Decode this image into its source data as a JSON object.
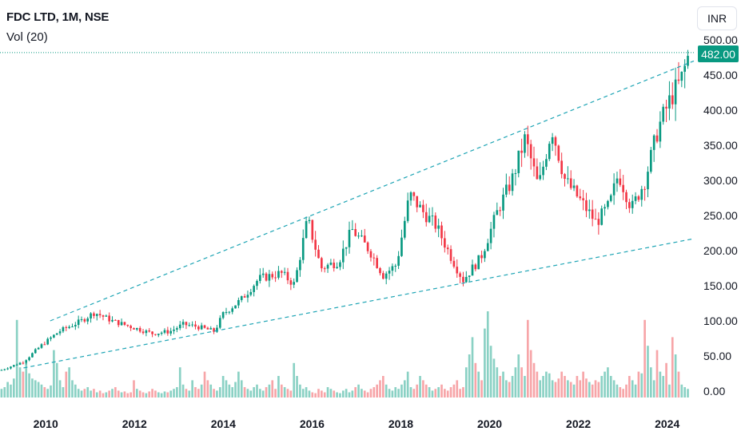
{
  "header": {
    "symbol_line": "FDC LTD, 1M, NSE",
    "volume_label": "Vol (20)",
    "currency": "INR",
    "last_price": "482.00"
  },
  "colors": {
    "up": "#089981",
    "down": "#f23645",
    "vol_up": "#8ad1c4",
    "vol_down": "#f7a5a8",
    "trendline": "#1fa5b5"
  },
  "chart_data": {
    "type": "candlestick",
    "title": "FDC LTD, 1M, NSE",
    "y_ticks": [
      "0.00",
      "50.00",
      "100.00",
      "150.00",
      "200.00",
      "250.00",
      "300.00",
      "350.00",
      "400.00",
      "450.00",
      "500.00"
    ],
    "x_ticks": [
      "2010",
      "2012",
      "2014",
      "2016",
      "2018",
      "2020",
      "2022",
      "2024"
    ],
    "ylim": [
      -10,
      510
    ],
    "xlim": [
      2008.97,
      2024.6
    ],
    "last_price": 482,
    "grid": false,
    "price_path": [
      [
        2009.0,
        30
      ],
      [
        2009.5,
        42
      ],
      [
        2009.9,
        65
      ],
      [
        2010.3,
        85
      ],
      [
        2010.8,
        100
      ],
      [
        2011.1,
        112
      ],
      [
        2011.5,
        100
      ],
      [
        2011.9,
        92
      ],
      [
        2012.4,
        82
      ],
      [
        2012.8,
        85
      ],
      [
        2013.1,
        95
      ],
      [
        2013.4,
        92
      ],
      [
        2013.8,
        85
      ],
      [
        2014.0,
        110
      ],
      [
        2014.4,
        130
      ],
      [
        2014.8,
        160
      ],
      [
        2015.3,
        168
      ],
      [
        2015.6,
        152
      ],
      [
        2015.9,
        245
      ],
      [
        2016.2,
        175
      ],
      [
        2016.6,
        185
      ],
      [
        2016.9,
        230
      ],
      [
        2017.3,
        200
      ],
      [
        2017.6,
        165
      ],
      [
        2017.9,
        180
      ],
      [
        2018.2,
        280
      ],
      [
        2018.5,
        255
      ],
      [
        2018.8,
        235
      ],
      [
        2019.1,
        195
      ],
      [
        2019.4,
        158
      ],
      [
        2019.8,
        190
      ],
      [
        2020.2,
        260
      ],
      [
        2020.5,
        300
      ],
      [
        2020.8,
        360
      ],
      [
        2021.1,
        290
      ],
      [
        2021.4,
        375
      ],
      [
        2021.7,
        300
      ],
      [
        2022.0,
        275
      ],
      [
        2022.4,
        240
      ],
      [
        2022.7,
        265
      ],
      [
        2022.9,
        310
      ],
      [
        2023.2,
        260
      ],
      [
        2023.5,
        300
      ],
      [
        2023.8,
        375
      ],
      [
        2024.1,
        420
      ],
      [
        2024.3,
        440
      ],
      [
        2024.5,
        482
      ]
    ],
    "trendlines": [
      {
        "x": [
          2010.1,
          2024.6
        ],
        "y": [
          100,
          470
        ]
      },
      {
        "x": [
          2009.5,
          2024.6
        ],
        "y": [
          33,
          217
        ]
      }
    ],
    "volume_relative": [
      0.1,
      0.12,
      0.18,
      0.15,
      0.22,
      0.9,
      0.35,
      0.3,
      0.4,
      0.28,
      0.22,
      0.2,
      0.18,
      0.15,
      0.12,
      0.1,
      0.14,
      0.55,
      0.4,
      0.2,
      0.12,
      0.3,
      0.35,
      0.2,
      0.15,
      0.1,
      0.08,
      0.1,
      0.12,
      0.08,
      0.1,
      0.06,
      0.08,
      0.05,
      0.06,
      0.08,
      0.1,
      0.12,
      0.08,
      0.06,
      0.07,
      0.05,
      0.06,
      0.2,
      0.1,
      0.08,
      0.06,
      0.05,
      0.07,
      0.1,
      0.08,
      0.06,
      0.05,
      0.07,
      0.06,
      0.08,
      0.1,
      0.12,
      0.35,
      0.15,
      0.1,
      0.08,
      0.2,
      0.12,
      0.1,
      0.15,
      0.3,
      0.2,
      0.15,
      0.1,
      0.08,
      0.12,
      0.25,
      0.2,
      0.15,
      0.12,
      0.18,
      0.3,
      0.2,
      0.12,
      0.1,
      0.08,
      0.12,
      0.15,
      0.1,
      0.08,
      0.12,
      0.15,
      0.2,
      0.1,
      0.25,
      0.15,
      0.12,
      0.1,
      0.08,
      0.4,
      0.25,
      0.15,
      0.1,
      0.12,
      0.08,
      0.06,
      0.05,
      0.1,
      0.08,
      0.06,
      0.12,
      0.1,
      0.08,
      0.06,
      0.05,
      0.08,
      0.1,
      0.06,
      0.08,
      0.12,
      0.15,
      0.1,
      0.08,
      0.06,
      0.1,
      0.12,
      0.15,
      0.2,
      0.25,
      0.15,
      0.1,
      0.08,
      0.12,
      0.1,
      0.15,
      0.2,
      0.3,
      0.12,
      0.1,
      0.15,
      0.25,
      0.2,
      0.15,
      0.12,
      0.08,
      0.1,
      0.12,
      0.15,
      0.1,
      0.08,
      0.12,
      0.15,
      0.2,
      0.1,
      0.12,
      0.35,
      0.5,
      0.7,
      0.4,
      0.3,
      0.2,
      0.8,
      1.0,
      0.6,
      0.45,
      0.35,
      0.25,
      0.3,
      0.2,
      0.18,
      0.25,
      0.35,
      0.5,
      0.35,
      0.25,
      0.9,
      0.55,
      0.4,
      0.3,
      0.2,
      0.25,
      0.3,
      0.28,
      0.2,
      0.18,
      0.22,
      0.3,
      0.25,
      0.2,
      0.18,
      0.15,
      0.25,
      0.2,
      0.3,
      0.22,
      0.18,
      0.15,
      0.2,
      0.18,
      0.25,
      0.3,
      0.35,
      0.25,
      0.2,
      0.15,
      0.12,
      0.1,
      0.15,
      0.25,
      0.2,
      0.15,
      0.3,
      0.28,
      0.9,
      0.6,
      0.35,
      0.2,
      0.55,
      0.3,
      0.25,
      0.4,
      0.15,
      0.7,
      0.5,
      0.3,
      0.15,
      0.12,
      0.1
    ]
  }
}
